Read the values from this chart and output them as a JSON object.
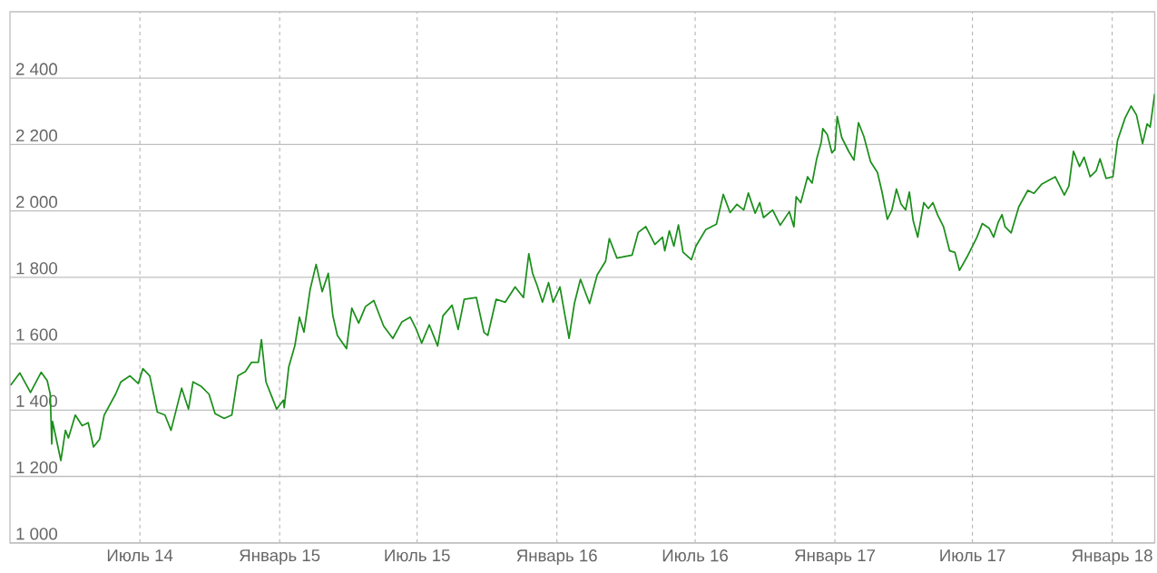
{
  "chart_data": {
    "type": "line",
    "color": "#1b8f1b",
    "grid": true,
    "marker": "none",
    "line_style": "solid",
    "xlim": [
      "2014-01-11",
      "2018-02-26"
    ],
    "ylim": [
      1000,
      2600
    ],
    "xticks": [
      {
        "value": "2014-07-01",
        "label": "Июль 14"
      },
      {
        "value": "2015-01-01",
        "label": "Январь 15"
      },
      {
        "value": "2015-07-01",
        "label": "Июль 15"
      },
      {
        "value": "2016-01-01",
        "label": "Январь 16"
      },
      {
        "value": "2016-07-01",
        "label": "Июль 16"
      },
      {
        "value": "2017-01-01",
        "label": "Январь 17"
      },
      {
        "value": "2017-07-01",
        "label": "Июль 17"
      },
      {
        "value": "2018-01-01",
        "label": "Январь 18"
      }
    ],
    "yticks": [
      {
        "value": 1000,
        "label": "1 000"
      },
      {
        "value": 1200,
        "label": "1 200"
      },
      {
        "value": 1400,
        "label": "1 400"
      },
      {
        "value": 1600,
        "label": "1 600"
      },
      {
        "value": 1800,
        "label": "1 800"
      },
      {
        "value": 2000,
        "label": "2 000"
      },
      {
        "value": 2200,
        "label": "2 200"
      },
      {
        "value": 2400,
        "label": "2 400"
      }
    ],
    "x": [
      "2014-01-12",
      "2014-01-24",
      "2014-02-07",
      "2014-02-21",
      "2014-03-01",
      "2014-03-05",
      "2014-03-07",
      "2014-03-08",
      "2014-03-19",
      "2014-03-25",
      "2014-03-29",
      "2014-04-07",
      "2014-04-16",
      "2014-04-24",
      "2014-05-01",
      "2014-05-09",
      "2014-05-15",
      "2014-05-30",
      "2014-06-06",
      "2014-06-18",
      "2014-06-29",
      "2014-07-05",
      "2014-07-14",
      "2014-07-24",
      "2014-08-03",
      "2014-08-11",
      "2014-08-25",
      "2014-09-03",
      "2014-09-09",
      "2014-09-20",
      "2014-09-30",
      "2014-10-08",
      "2014-10-20",
      "2014-10-30",
      "2014-11-07",
      "2014-11-17",
      "2014-11-25",
      "2014-12-04",
      "2014-12-08",
      "2014-12-14",
      "2014-12-25",
      "2014-12-28",
      "2015-01-06",
      "2015-01-07",
      "2015-01-13",
      "2015-01-21",
      "2015-01-27",
      "2015-02-02",
      "2015-02-10",
      "2015-02-18",
      "2015-02-26",
      "2015-03-06",
      "2015-03-12",
      "2015-03-18",
      "2015-03-30",
      "2015-04-06",
      "2015-04-15",
      "2015-04-24",
      "2015-05-05",
      "2015-05-18",
      "2015-05-30",
      "2015-06-11",
      "2015-06-22",
      "2015-06-29",
      "2015-07-07",
      "2015-07-17",
      "2015-07-28",
      "2015-08-04",
      "2015-08-16",
      "2015-08-24",
      "2015-09-01",
      "2015-09-17",
      "2015-09-27",
      "2015-10-02",
      "2015-10-13",
      "2015-10-25",
      "2015-11-07",
      "2015-11-18",
      "2015-11-25",
      "2015-11-30",
      "2015-12-06",
      "2015-12-13",
      "2015-12-21",
      "2015-12-27",
      "2016-01-05",
      "2016-01-11",
      "2016-01-17",
      "2016-01-24",
      "2016-02-01",
      "2016-02-13",
      "2016-02-23",
      "2016-03-05",
      "2016-03-10",
      "2016-03-20",
      "2016-04-09",
      "2016-04-17",
      "2016-04-27",
      "2016-05-09",
      "2016-05-19",
      "2016-05-22",
      "2016-05-28",
      "2016-06-03",
      "2016-06-09",
      "2016-06-15",
      "2016-06-26",
      "2016-07-02",
      "2016-07-15",
      "2016-07-29",
      "2016-08-07",
      "2016-08-16",
      "2016-08-25",
      "2016-09-03",
      "2016-09-09",
      "2016-09-18",
      "2016-09-24",
      "2016-09-29",
      "2016-10-11",
      "2016-10-21",
      "2016-11-02",
      "2016-11-08",
      "2016-11-11",
      "2016-11-17",
      "2016-11-26",
      "2016-12-02",
      "2016-12-08",
      "2016-12-14",
      "2016-12-16",
      "2016-12-22",
      "2016-12-28",
      "2017-01-01",
      "2017-01-04",
      "2017-01-10",
      "2017-01-19",
      "2017-01-26",
      "2017-02-01",
      "2017-02-08",
      "2017-02-17",
      "2017-02-26",
      "2017-03-04",
      "2017-03-11",
      "2017-03-17",
      "2017-03-23",
      "2017-03-29",
      "2017-04-04",
      "2017-04-09",
      "2017-04-14",
      "2017-04-20",
      "2017-04-28",
      "2017-05-04",
      "2017-05-10",
      "2017-05-16",
      "2017-05-24",
      "2017-06-01",
      "2017-06-08",
      "2017-06-14",
      "2017-06-25",
      "2017-07-07",
      "2017-07-14",
      "2017-07-23",
      "2017-07-29",
      "2017-08-04",
      "2017-08-09",
      "2017-08-13",
      "2017-08-21",
      "2017-08-31",
      "2017-09-12",
      "2017-09-20",
      "2017-09-30",
      "2017-10-18",
      "2017-10-30",
      "2017-11-05",
      "2017-11-11",
      "2017-11-19",
      "2017-11-25",
      "2017-12-03",
      "2017-12-11",
      "2017-12-16",
      "2017-12-24",
      "2018-01-02",
      "2018-01-08",
      "2018-01-18",
      "2018-01-26",
      "2018-02-02",
      "2018-02-10",
      "2018-02-16",
      "2018-02-20",
      "2018-02-26"
    ],
    "values": [
      1475,
      1512,
      1453,
      1514,
      1489,
      1448,
      1298,
      1366,
      1248,
      1339,
      1316,
      1385,
      1353,
      1362,
      1289,
      1312,
      1385,
      1448,
      1485,
      1503,
      1480,
      1525,
      1503,
      1394,
      1385,
      1339,
      1466,
      1403,
      1485,
      1471,
      1448,
      1389,
      1375,
      1385,
      1503,
      1516,
      1544,
      1544,
      1612,
      1485,
      1421,
      1403,
      1430,
      1407,
      1530,
      1594,
      1680,
      1635,
      1762,
      1839,
      1757,
      1812,
      1685,
      1625,
      1585,
      1707,
      1662,
      1712,
      1730,
      1653,
      1616,
      1666,
      1680,
      1648,
      1602,
      1657,
      1593,
      1684,
      1716,
      1643,
      1734,
      1739,
      1634,
      1625,
      1734,
      1725,
      1771,
      1739,
      1871,
      1812,
      1775,
      1725,
      1784,
      1725,
      1771,
      1693,
      1616,
      1721,
      1794,
      1721,
      1807,
      1848,
      1917,
      1858,
      1867,
      1935,
      1953,
      1899,
      1921,
      1880,
      1940,
      1894,
      1958,
      1876,
      1853,
      1894,
      1944,
      1960,
      2050,
      1995,
      2020,
      2003,
      2054,
      1993,
      2025,
      1980,
      2003,
      1957,
      1998,
      1952,
      2043,
      2025,
      2103,
      2084,
      2157,
      2207,
      2248,
      2230,
      2175,
      2185,
      2285,
      2221,
      2180,
      2153,
      2266,
      2225,
      2148,
      2116,
      2057,
      1975,
      2003,
      2066,
      2021,
      2003,
      2057,
      1971,
      1921,
      2025,
      2007,
      2025,
      1989,
      1952,
      1880,
      1875,
      1821,
      1866,
      1921,
      1962,
      1948,
      1921,
      1966,
      1989,
      1952,
      1934,
      2012,
      2062,
      2053,
      2080,
      2103,
      2048,
      2075,
      2180,
      2134,
      2162,
      2103,
      2121,
      2157,
      2098,
      2103,
      2212,
      2280,
      2316,
      2289,
      2203,
      2262,
      2253,
      2353
    ]
  }
}
